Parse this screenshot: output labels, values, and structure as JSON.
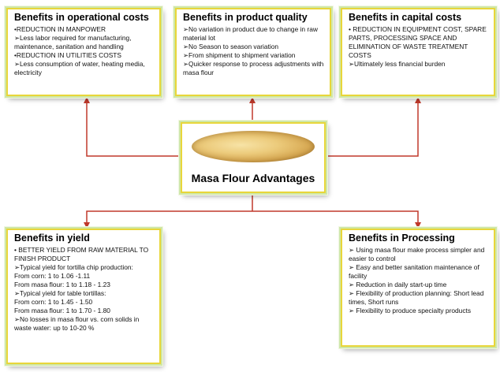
{
  "center": {
    "title": "Masa Flour Advantages",
    "image": "masa-flour-photo"
  },
  "boxes": {
    "operational": {
      "title": "Benefits in operational costs",
      "items": [
        "•REDUCTION IN MANPOWER",
        "➢Less labor required for manufacturing, maintenance, sanitation and handling",
        "•REDUCTION IN UTILITIES COSTS",
        "➢Less consumption of water, heating media, electricity"
      ]
    },
    "quality": {
      "title": "Benefits in product quality",
      "items": [
        "➢No variation in product due to change in raw material lot",
        "➢No Season to season variation",
        "➢From shipment to shipment variation",
        "➢Quicker response to process adjustments with masa flour"
      ]
    },
    "capital": {
      "title": "Benefits in capital costs",
      "items": [
        "• REDUCTION IN EQUIPMENT COST, SPARE PARTS, PROCESSING SPACE AND ELIMINATION OF WASTE TREATMENT COSTS",
        "➢Ultimately  less financial burden"
      ]
    },
    "yield": {
      "title": "Benefits in yield",
      "items": [
        "• BETTER YIELD FROM RAW MATERIAL TO FINISH PRODUCT",
        "➢Typical yield for tortilla chip production:",
        "From corn: 1 to 1.06 -1.11",
        "From masa flour: 1 to 1.18 - 1.23",
        "➢Typical yield for table tortillas:",
        "From corn: 1 to 1.45 - 1.50",
        "From masa flour: 1 to 1.70 - 1.80",
        "➢No losses in masa flour vs. corn solids in waste water: up to 10-20 %"
      ]
    },
    "processing": {
      "title": "Benefits in Processing",
      "items": [
        "➢ Using masa flour make process simpler and easier to control",
        "➢ Easy and better sanitation maintenance of facility",
        "➢ Reduction in daily start-up time",
        "➢ Flexibility of production planning: Short lead times, Short runs",
        "➢ Flexibility to produce specialty products"
      ]
    }
  },
  "colors": {
    "connector": "#c0392b",
    "box_border": "#e8d63a",
    "box_glow": "#cfe7a8"
  }
}
